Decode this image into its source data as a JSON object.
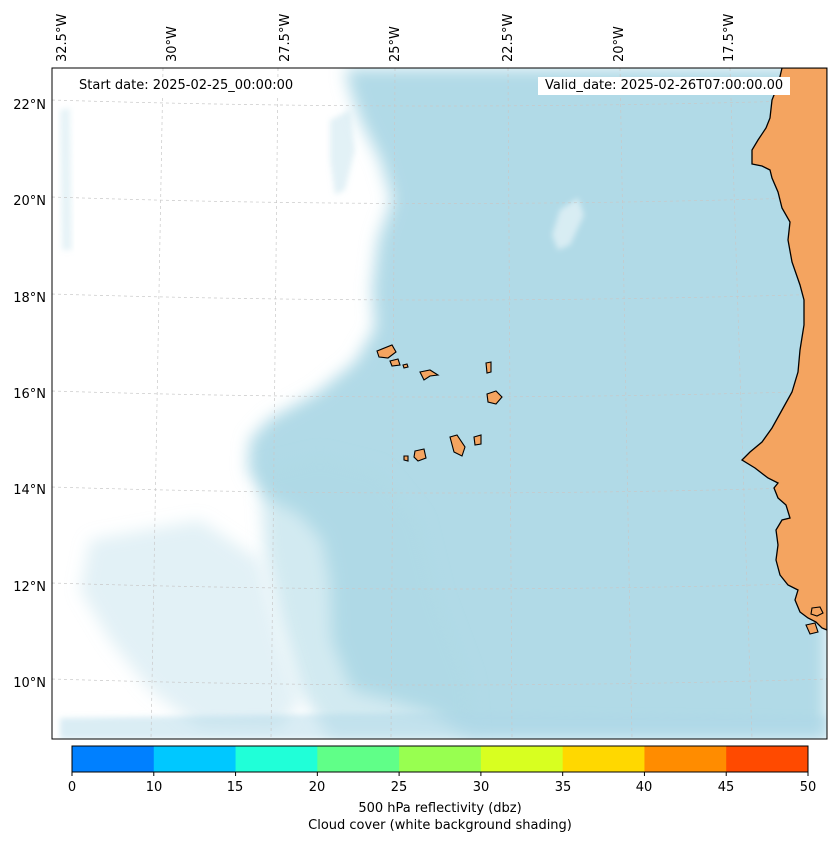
{
  "map": {
    "lon_labels": [
      "32.5°W",
      "30°W",
      "27.5°W",
      "25°W",
      "22.5°W",
      "20°W",
      "17.5°W"
    ],
    "lat_labels": [
      "22°N",
      "20°N",
      "18°N",
      "16°N",
      "14°N",
      "12°N",
      "10°N"
    ],
    "start_date_text": "Start date: 2025-02-25_00:00:00",
    "valid_date_text": "Valid_date: 2025-02-26T07:00:00.00",
    "colors": {
      "land": "#f4a460",
      "cloud": "#add8e6",
      "ocean_background": "#ffffff",
      "gridline": "#c8c8c8"
    }
  },
  "colorbar": {
    "ticks": [
      "0",
      "10",
      "15",
      "20",
      "25",
      "30",
      "35",
      "40",
      "45",
      "50"
    ],
    "colors": [
      "#0080ff",
      "#00c8ff",
      "#20ffd8",
      "#60ff88",
      "#98ff50",
      "#d8ff20",
      "#ffd800",
      "#ff8c00",
      "#ff4a00"
    ],
    "label_line1": "500 hPa reflectivity (dbz)",
    "label_line2": "Cloud cover (white background shading)"
  }
}
